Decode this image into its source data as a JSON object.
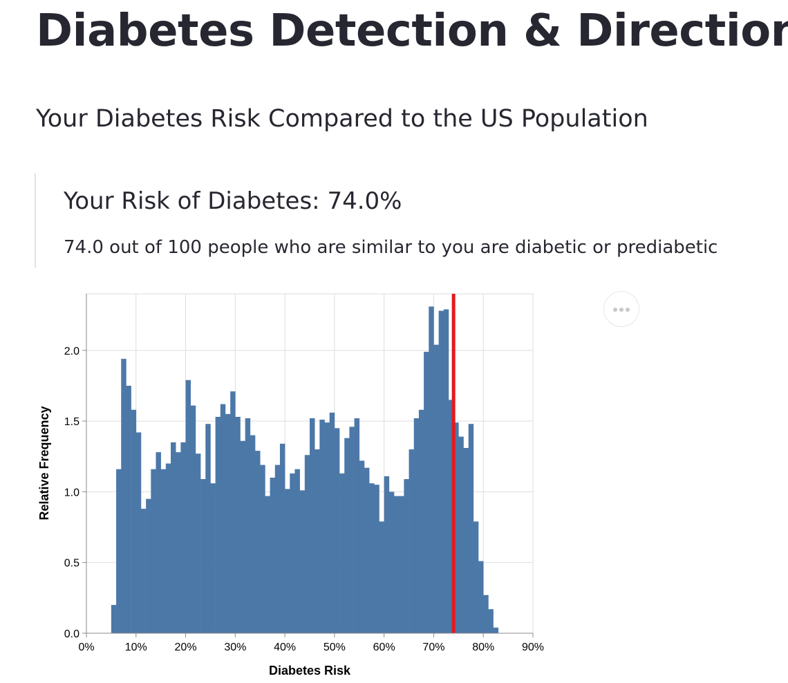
{
  "header": {
    "title": "Diabetes Detection & Direction",
    "subtitle": "Your Diabetes Risk Compared to the US Population"
  },
  "risk": {
    "heading": "Your Risk of Diabetes: 74.0%",
    "description": "74.0 out of 100 people who are similar to you are diabetic or prediabetic"
  },
  "menu": {
    "icon": "more-horizontal-icon"
  },
  "colors": {
    "bars": "#4c78a8",
    "marker": "#e41a1c",
    "text": "#262730"
  },
  "chart_data": {
    "type": "bar",
    "xlabel": "Diabetes Risk",
    "ylabel": "Relative Frequency",
    "xlim": [
      0,
      90
    ],
    "ylim": [
      0,
      2.4
    ],
    "x_ticks": [
      "0%",
      "10%",
      "20%",
      "30%",
      "40%",
      "50%",
      "60%",
      "70%",
      "80%",
      "90%"
    ],
    "y_ticks": [
      "0.0",
      "0.5",
      "1.0",
      "1.5",
      "2.0"
    ],
    "grid": true,
    "bin_width": 1,
    "bin_start": 5,
    "values": [
      0.2,
      1.16,
      1.94,
      1.75,
      1.58,
      1.42,
      0.88,
      0.95,
      1.16,
      1.28,
      1.16,
      1.2,
      1.35,
      1.28,
      1.35,
      1.79,
      1.61,
      1.27,
      1.09,
      1.48,
      1.06,
      1.53,
      1.62,
      1.55,
      1.71,
      1.53,
      1.36,
      1.52,
      1.4,
      1.29,
      1.19,
      0.97,
      1.1,
      1.19,
      1.34,
      1.02,
      1.13,
      1.16,
      1.01,
      1.26,
      1.52,
      1.3,
      1.51,
      1.49,
      1.56,
      1.45,
      1.13,
      1.38,
      1.46,
      1.52,
      1.22,
      1.17,
      1.06,
      1.05,
      0.79,
      1.11,
      1.0,
      0.97,
      0.97,
      1.09,
      1.3,
      1.52,
      1.58,
      1.99,
      2.31,
      2.04,
      2.28,
      2.29,
      1.65,
      1.49,
      1.39,
      1.31,
      1.48,
      0.79,
      0.51,
      0.27,
      0.17,
      0.04
    ],
    "marker": {
      "x": 74.0
    }
  }
}
